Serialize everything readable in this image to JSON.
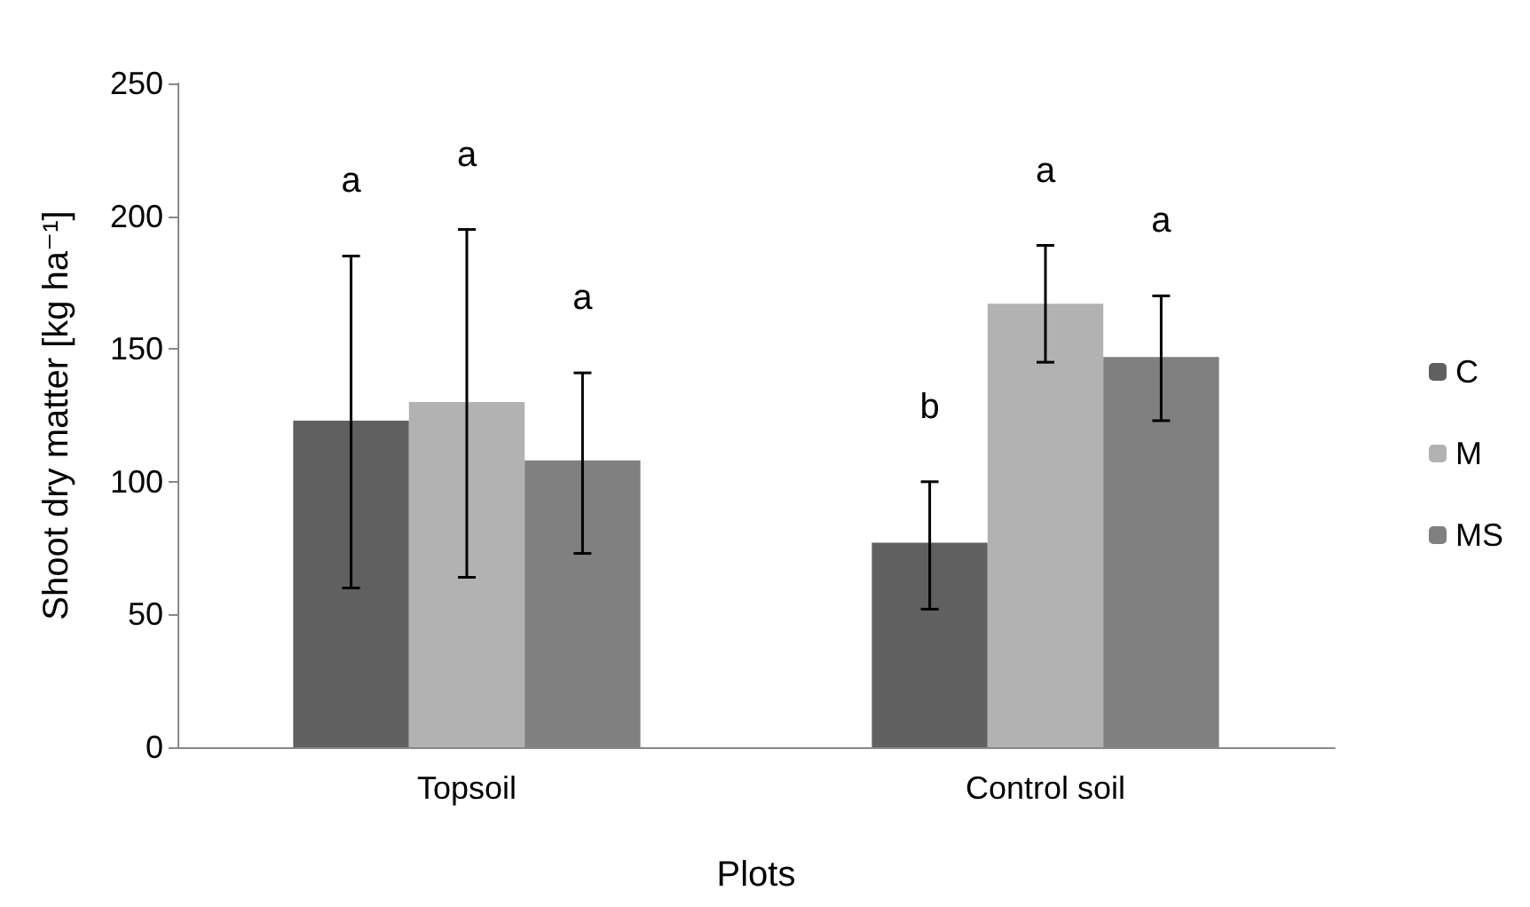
{
  "chart_data": {
    "type": "bar",
    "xlabel": "Plots",
    "ylabel": "Shoot dry matter [kg ha⁻¹]",
    "categories": [
      "Topsoil",
      "Control soil"
    ],
    "series": [
      {
        "name": "C",
        "color": "#606060",
        "values": [
          123,
          77
        ],
        "errors": [
          [
            60,
            185
          ],
          [
            52,
            100
          ]
        ]
      },
      {
        "name": "M",
        "color": "#b2b2b2",
        "values": [
          130,
          167
        ],
        "errors": [
          [
            64,
            195
          ],
          [
            145,
            189
          ]
        ]
      },
      {
        "name": "MS",
        "color": "#808080",
        "values": [
          108,
          147
        ],
        "errors": [
          [
            73,
            141
          ],
          [
            123,
            170
          ]
        ]
      }
    ],
    "ylim": [
      0,
      250
    ],
    "yticks": [
      0,
      50,
      100,
      150,
      200,
      250
    ],
    "grid": false,
    "legend": "right",
    "annotations": [
      "a",
      "a",
      "a",
      "b",
      "a",
      "a"
    ]
  }
}
